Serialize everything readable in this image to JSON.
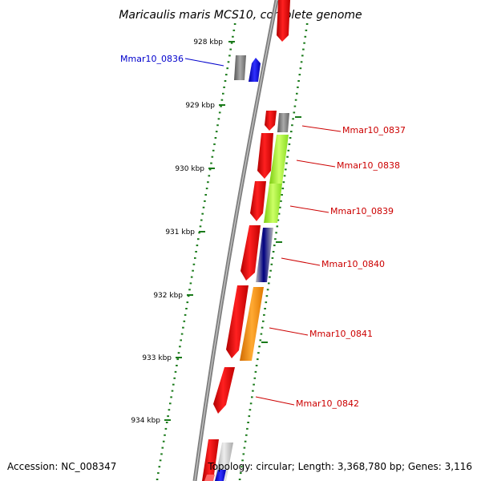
{
  "title": "Maricaulis maris MCS10, complete genome",
  "accession_label": "Accession: NC_008347",
  "summary_label": "Topology: circular; Length: 3,368,780 bp; Genes: 3,116",
  "ticks": [
    "928 kbp",
    "929 kbp",
    "930 kbp",
    "931 kbp",
    "932 kbp",
    "933 kbp",
    "934 kbp"
  ],
  "genes": [
    {
      "id": "Mmar10_0836",
      "color": "#0000cc"
    },
    {
      "id": "Mmar10_0837",
      "color": "#cc0000"
    },
    {
      "id": "Mmar10_0838",
      "color": "#cc0000"
    },
    {
      "id": "Mmar10_0839",
      "color": "#cc0000"
    },
    {
      "id": "Mmar10_0840",
      "color": "#cc0000"
    },
    {
      "id": "Mmar10_0841",
      "color": "#cc0000"
    },
    {
      "id": "Mmar10_0842",
      "color": "#cc0000"
    }
  ],
  "colors": {
    "backbone": "#888888",
    "tick": "#1a7a1a",
    "cds": "#ee0000",
    "gray_feature": "#777777",
    "blue_feature": "#0000ee",
    "lime_feature": "#99ee22",
    "purple_feature": "#4b4b9f",
    "orange_feature": "#ff8c00"
  }
}
